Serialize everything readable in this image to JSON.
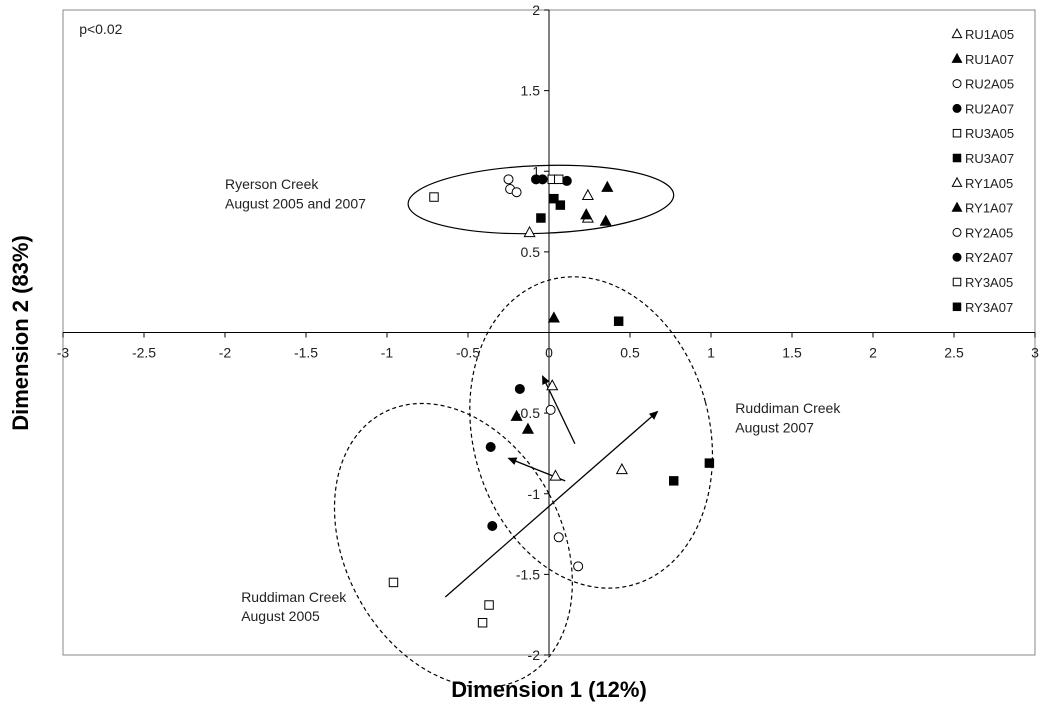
{
  "chart_data": {
    "type": "scatter",
    "title": "",
    "xlabel": "Dimension 1 (12%)",
    "ylabel": "Dimension 2 (83%)",
    "xlim": [
      -3,
      3
    ],
    "ylim": [
      -2,
      2
    ],
    "xticks": [
      "-3",
      "-2.5",
      "-2",
      "-1.5",
      "-1",
      "-0.5",
      "0",
      "0.5",
      "1",
      "1.5",
      "2",
      "2.5",
      "3"
    ],
    "xtick_values": [
      -3,
      -2.5,
      -2,
      -1.5,
      -1,
      -0.5,
      0,
      0.5,
      1,
      1.5,
      2,
      2.5,
      3
    ],
    "yticks": [
      "-2",
      "-1.5",
      "-1",
      "-0.5",
      "0.5",
      "1",
      "1.5",
      "2"
    ],
    "ytick_values": [
      -2,
      -1.5,
      -1,
      -0.5,
      0.5,
      1,
      1.5,
      2
    ],
    "grid": false,
    "legend_position": "right",
    "annotations": [
      {
        "text": "p<0.02",
        "x": -2.9,
        "y": 1.85
      },
      {
        "text": "Ryerson Creek",
        "x": -2.0,
        "y": 0.89
      },
      {
        "text": "August 2005 and 2007",
        "x": -2.0,
        "y": 0.77
      },
      {
        "text": "Ruddiman Creek",
        "x": 1.15,
        "y": -0.5
      },
      {
        "text": "August 2007",
        "x": 1.15,
        "y": -0.62
      },
      {
        "text": "Ruddiman Creek",
        "x": -1.9,
        "y": -1.67
      },
      {
        "text": "August 2005",
        "x": -1.9,
        "y": -1.79
      }
    ],
    "series": [
      {
        "name": "RU1A05",
        "marker": "triangle-open",
        "points": [
          [
            0.02,
            -0.33
          ],
          [
            0.04,
            -0.89
          ],
          [
            0.45,
            -0.85
          ]
        ]
      },
      {
        "name": "RU1A07",
        "marker": "triangle-filled",
        "points": [
          [
            0.03,
            0.09
          ],
          [
            -0.2,
            -0.52
          ],
          [
            -0.13,
            -0.6
          ]
        ]
      },
      {
        "name": "RU2A05",
        "marker": "circle-open",
        "points": [
          [
            0.01,
            -0.48
          ],
          [
            0.06,
            -1.27
          ],
          [
            0.18,
            -1.45
          ]
        ]
      },
      {
        "name": "RU2A07",
        "marker": "circle-filled",
        "points": [
          [
            -0.18,
            -0.35
          ],
          [
            -0.36,
            -0.71
          ],
          [
            -0.35,
            -1.2
          ]
        ]
      },
      {
        "name": "RU3A05",
        "marker": "square-open",
        "points": [
          [
            -0.96,
            -1.55
          ],
          [
            -0.37,
            -1.69
          ],
          [
            -0.41,
            -1.8
          ]
        ]
      },
      {
        "name": "RU3A07",
        "marker": "square-filled",
        "points": [
          [
            0.43,
            0.07
          ],
          [
            0.77,
            -0.92
          ],
          [
            0.99,
            -0.81
          ]
        ]
      },
      {
        "name": "RY1A05",
        "marker": "triangle-open",
        "points": [
          [
            -0.12,
            0.62
          ],
          [
            0.24,
            0.85
          ],
          [
            0.24,
            0.71
          ]
        ]
      },
      {
        "name": "RY1A07",
        "marker": "triangle-filled",
        "points": [
          [
            0.36,
            0.9
          ],
          [
            0.23,
            0.73
          ],
          [
            0.35,
            0.69
          ]
        ]
      },
      {
        "name": "RY2A05",
        "marker": "circle-open",
        "points": [
          [
            -0.25,
            0.95
          ],
          [
            -0.24,
            0.89
          ],
          [
            -0.2,
            0.87
          ]
        ]
      },
      {
        "name": "RY2A07",
        "marker": "circle-filled",
        "points": [
          [
            -0.08,
            0.95
          ],
          [
            -0.04,
            0.95
          ],
          [
            0.11,
            0.94
          ]
        ]
      },
      {
        "name": "RY3A05",
        "marker": "square-open",
        "points": [
          [
            -0.71,
            0.84
          ],
          [
            0.02,
            0.95
          ],
          [
            0.06,
            0.95
          ]
        ]
      },
      {
        "name": "RY3A07",
        "marker": "square-filled",
        "points": [
          [
            -0.05,
            0.71
          ],
          [
            0.03,
            0.83
          ],
          [
            0.07,
            0.79
          ]
        ]
      }
    ],
    "ellipses": [
      {
        "group": "Ryerson Creek",
        "style": "solid",
        "cx": -0.05,
        "cy": 0.825,
        "rx": 0.82,
        "ry": 0.21,
        "angle_deg": 2
      },
      {
        "group": "Ruddiman Creek August 2007",
        "style": "dashed",
        "cx": 0.26,
        "cy": -0.62,
        "rx": 0.73,
        "ry": 0.98,
        "angle_deg": 15
      },
      {
        "group": "Ruddiman Creek August 2005",
        "style": "dashed",
        "cx": -0.59,
        "cy": -1.32,
        "rx": 0.67,
        "ry": 0.93,
        "angle_deg": 28
      }
    ],
    "arrows": [
      {
        "from": [
          0.16,
          -0.69
        ],
        "to": [
          -0.04,
          -0.27
        ]
      },
      {
        "from": [
          0.1,
          -0.92
        ],
        "to": [
          -0.25,
          -0.78
        ]
      },
      {
        "from": [
          -0.64,
          -1.64
        ],
        "to": [
          0.67,
          -0.49
        ]
      }
    ]
  }
}
